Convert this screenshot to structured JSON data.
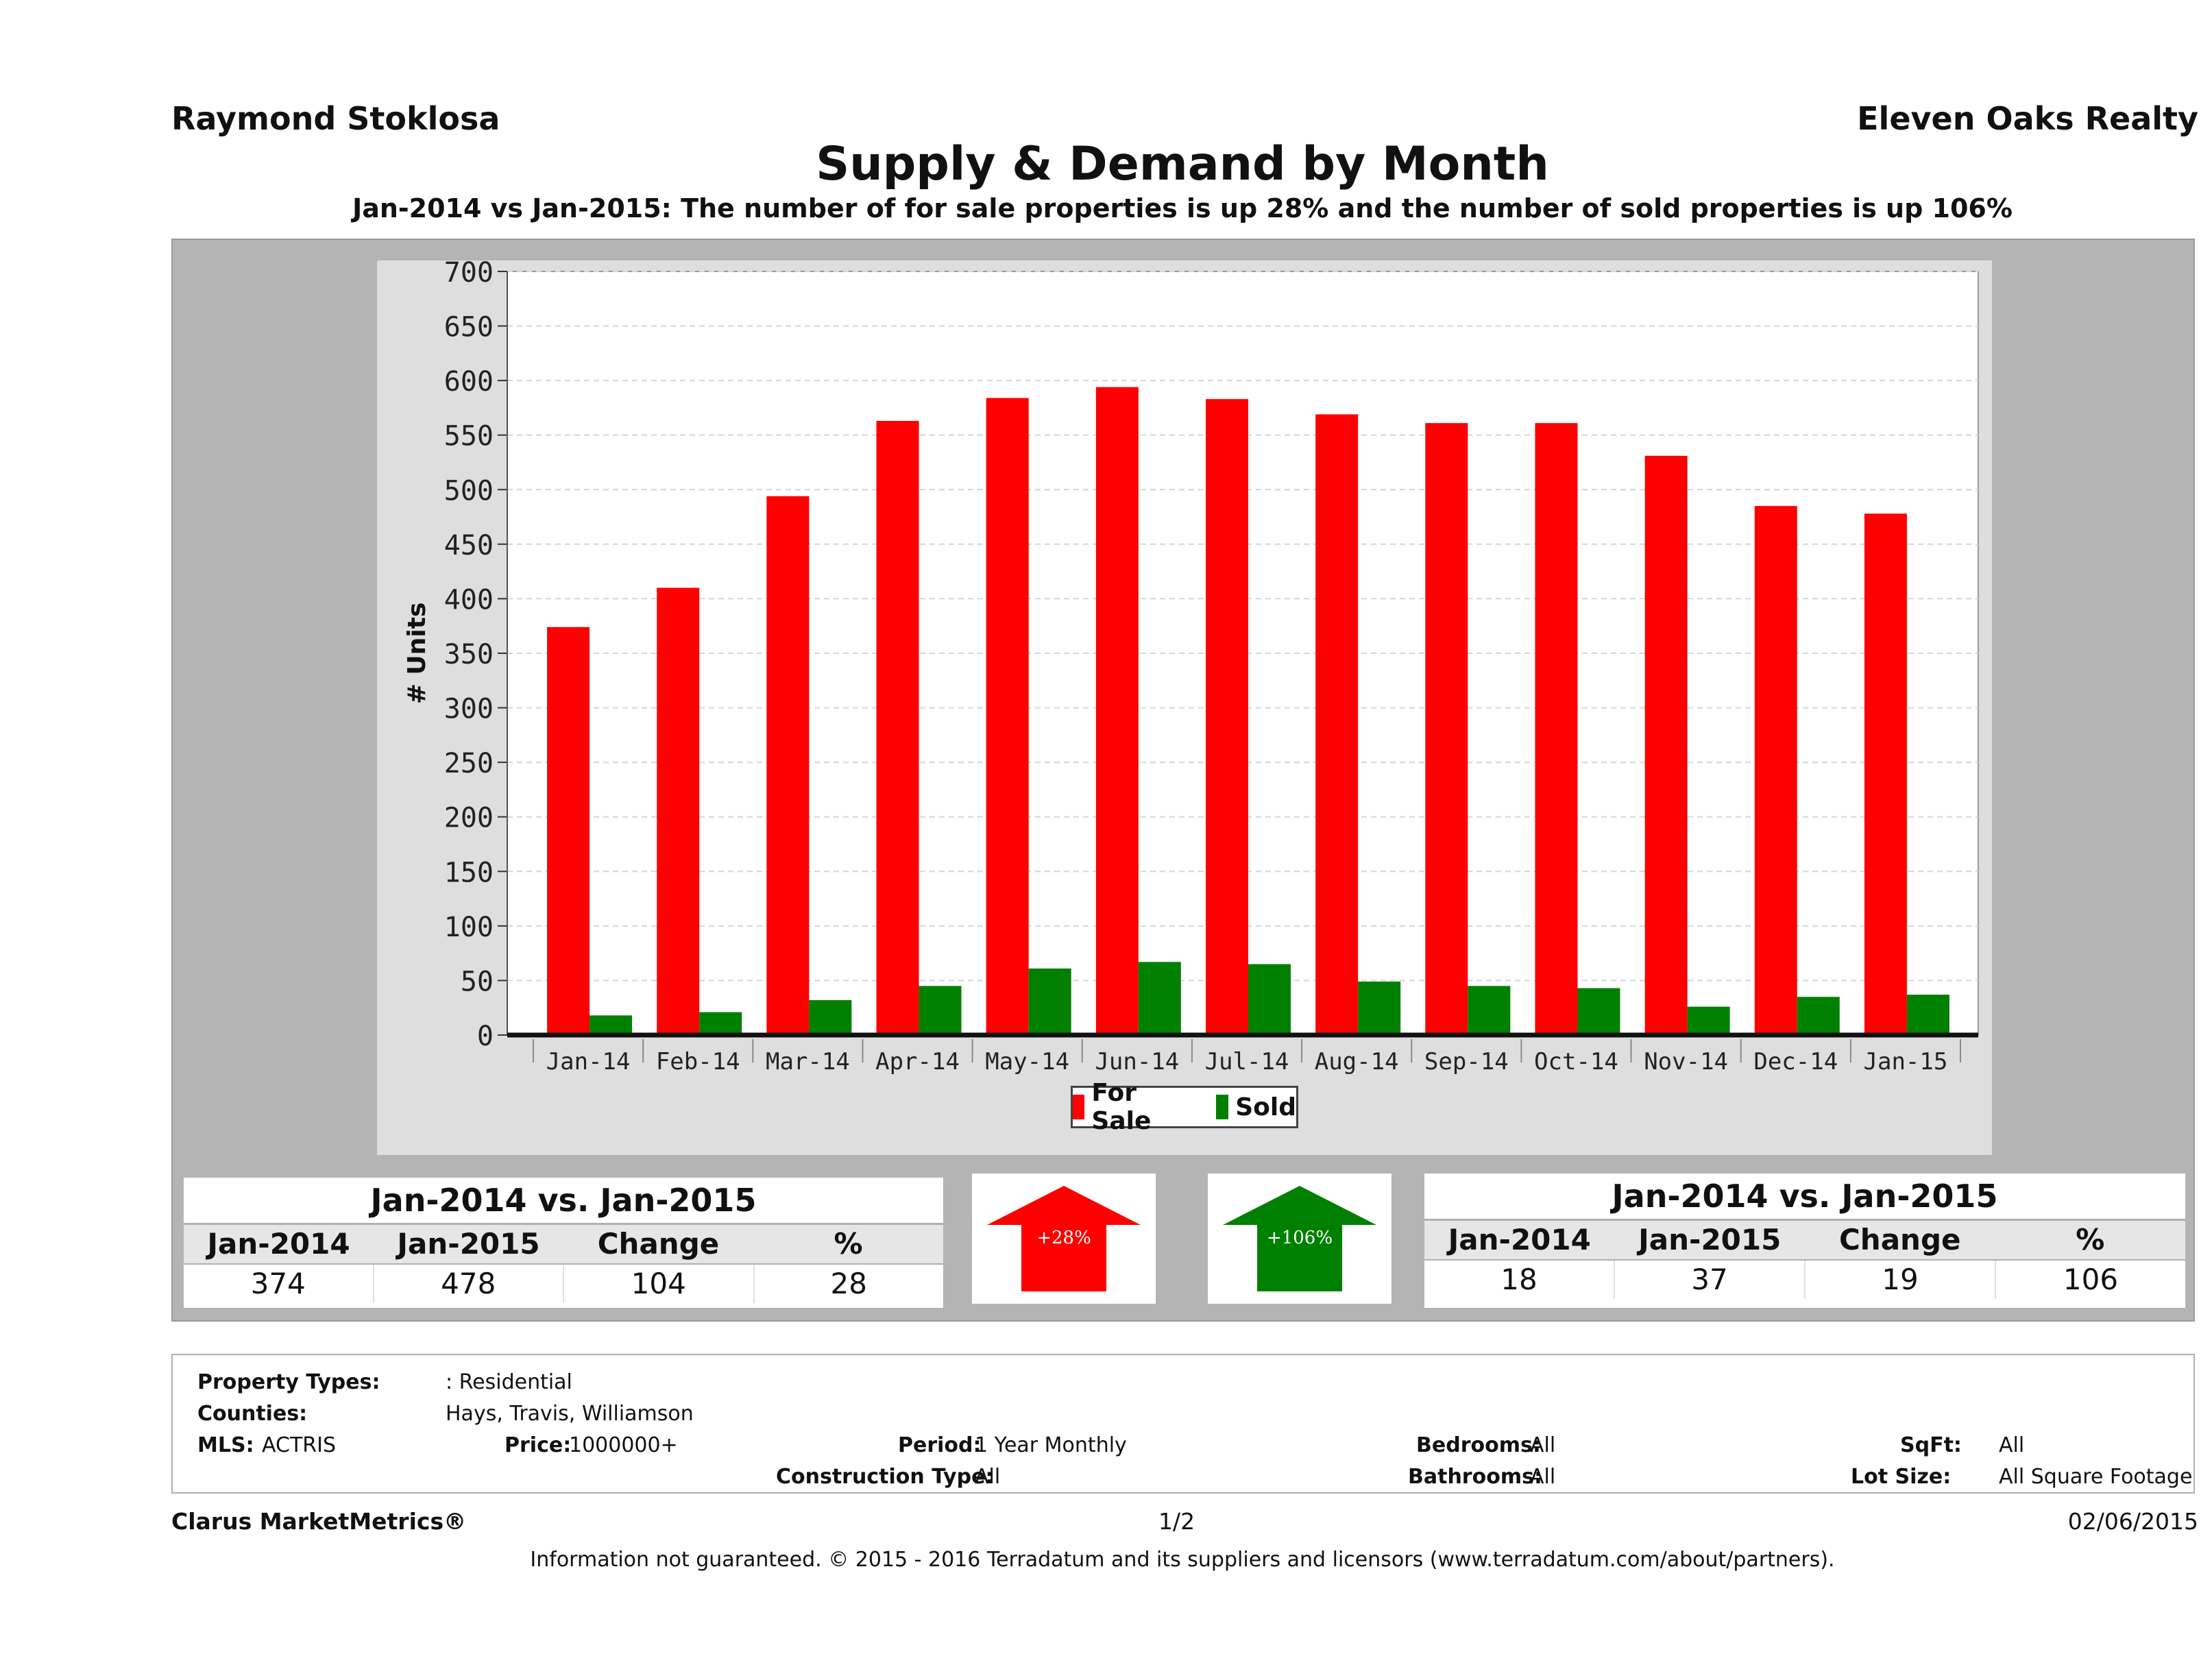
{
  "header": {
    "agent": "Raymond Stoklosa",
    "broker": "Eleven Oaks Realty",
    "title": "Supply & Demand by Month",
    "subtitle": "Jan-2014 vs Jan-2015: The number of for sale properties is up 28% and the number of sold properties is up 106%"
  },
  "chart_data": {
    "type": "bar",
    "categories": [
      "Jan-14",
      "Feb-14",
      "Mar-14",
      "Apr-14",
      "May-14",
      "Jun-14",
      "Jul-14",
      "Aug-14",
      "Sep-14",
      "Oct-14",
      "Nov-14",
      "Dec-14",
      "Jan-15"
    ],
    "series": [
      {
        "name": "For Sale",
        "color": "#ff0000",
        "values": [
          374,
          410,
          494,
          563,
          584,
          594,
          583,
          569,
          561,
          561,
          531,
          485,
          478
        ]
      },
      {
        "name": "Sold",
        "color": "#008000",
        "values": [
          18,
          21,
          32,
          45,
          61,
          67,
          65,
          49,
          45,
          43,
          26,
          35,
          37
        ]
      }
    ],
    "ylabel": "# Units",
    "xlabel": "",
    "ylim": [
      0,
      700
    ],
    "yticks": [
      "0",
      "50",
      "100",
      "150",
      "200",
      "250",
      "300",
      "350",
      "400",
      "450",
      "500",
      "550",
      "600",
      "650",
      "700"
    ],
    "legend_position": "bottom-center",
    "grid": true
  },
  "legend": {
    "for_sale": "For Sale",
    "sold": "Sold"
  },
  "for_sale_table": {
    "heading": "Jan-2014 vs. Jan-2015",
    "columns": [
      "Jan-2014",
      "Jan-2015",
      "Change",
      "%"
    ],
    "values": [
      "374",
      "478",
      "104",
      "28"
    ]
  },
  "sold_table": {
    "heading": "Jan-2014 vs. Jan-2015",
    "columns": [
      "Jan-2014",
      "Jan-2015",
      "Change",
      "%"
    ],
    "values": [
      "18",
      "37",
      "19",
      "106"
    ]
  },
  "arrows": {
    "for_sale_label": "+28%",
    "for_sale_color": "#ff0000",
    "sold_label": "+106%",
    "sold_color": "#008000"
  },
  "criteria": {
    "property_types_label": "Property Types:",
    "property_types": ": Residential",
    "counties_label": "Counties:",
    "counties": "Hays, Travis, Williamson",
    "mls_label": "MLS:",
    "mls": "ACTRIS",
    "price_label": "Price:",
    "price": "1000000+",
    "period_label": "Period:",
    "period": "1 Year Monthly",
    "construction_label": "Construction Type:",
    "construction": "All",
    "bedrooms_label": "Bedrooms:",
    "bedrooms": "All",
    "bathrooms_label": "Bathrooms:",
    "bathrooms": "All",
    "sqft_label": "SqFt:",
    "sqft": "All",
    "lot_size_label": "Lot Size:",
    "lot_size": "All Square Footage"
  },
  "footer": {
    "brand": "Clarus MarketMetrics®",
    "page": "1/2",
    "date": "02/06/2015",
    "disclaimer": "Information not guaranteed. © 2015 - 2016 Terradatum and its suppliers and licensors (www.terradatum.com/about/partners)."
  }
}
